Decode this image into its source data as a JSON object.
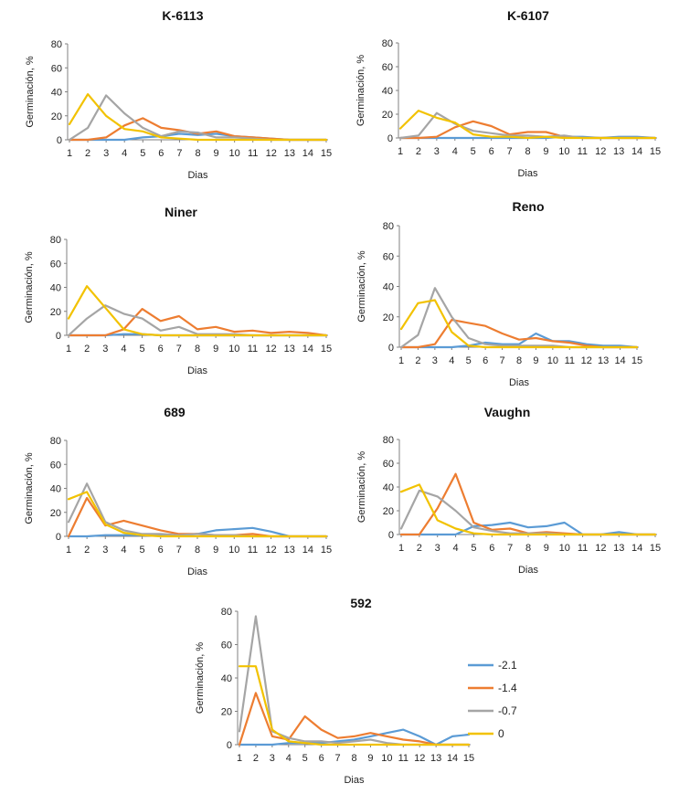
{
  "figure": {
    "xlabel": "Dias",
    "ylabel": "Germinación, %"
  },
  "colors": {
    "-2.1": "#5b9bd5",
    "-1.4": "#ed7d31",
    "-0.7": "#a5a5a5",
    "0": "#f2c200",
    "axis": "#808080",
    "text": "#222222"
  },
  "legend": {
    "position": "right of chart 592",
    "entries": [
      {
        "label": "-2.1",
        "color_key": "-2.1"
      },
      {
        "label": "-1.4",
        "color_key": "-1.4"
      },
      {
        "label": "-0.7",
        "color_key": "-0.7"
      },
      {
        "label": "0",
        "color_key": "0"
      }
    ]
  },
  "chart_data": [
    {
      "type": "line",
      "title": "K-6113",
      "xlabel": "Dias",
      "ylabel": "Germinación, %",
      "x": [
        1,
        2,
        3,
        4,
        5,
        6,
        7,
        8,
        9,
        10,
        11,
        12,
        13,
        14,
        15
      ],
      "ylim": [
        0,
        80
      ],
      "yticks": [
        0,
        20,
        40,
        60,
        80
      ],
      "series": [
        {
          "name": "-2.1",
          "values": [
            0,
            0,
            0,
            0,
            2,
            3,
            5,
            4,
            5,
            3,
            2,
            1,
            0,
            0,
            0
          ]
        },
        {
          "name": "-1.4",
          "values": [
            0,
            0,
            2,
            12,
            18,
            10,
            8,
            5,
            7,
            3,
            2,
            1,
            0,
            0,
            0
          ]
        },
        {
          "name": "-0.7",
          "values": [
            0,
            10,
            37,
            22,
            10,
            3,
            7,
            6,
            2,
            2,
            1,
            0,
            0,
            0,
            0
          ]
        },
        {
          "name": "0",
          "values": [
            13,
            38,
            20,
            9,
            7,
            2,
            1,
            0,
            0,
            0,
            0,
            0,
            0,
            0,
            0
          ]
        }
      ]
    },
    {
      "type": "line",
      "title": "K-6107",
      "xlabel": "Dias",
      "ylabel": "Germinación, %",
      "x": [
        1,
        2,
        3,
        4,
        5,
        6,
        7,
        8,
        9,
        10,
        11,
        12,
        13,
        14,
        15
      ],
      "ylim": [
        0,
        80
      ],
      "yticks": [
        0,
        20,
        40,
        60,
        80
      ],
      "series": [
        {
          "name": "-2.1",
          "values": [
            0,
            0,
            0,
            0,
            0,
            0,
            0,
            0,
            0,
            1,
            1,
            0,
            1,
            1,
            0
          ]
        },
        {
          "name": "-1.4",
          "values": [
            0,
            0,
            1,
            9,
            14,
            10,
            3,
            5,
            5,
            1,
            0,
            0,
            0,
            0,
            0
          ]
        },
        {
          "name": "-0.7",
          "values": [
            0,
            2,
            21,
            12,
            6,
            4,
            2,
            2,
            1,
            2,
            0,
            0,
            0,
            0,
            0
          ]
        },
        {
          "name": "0",
          "values": [
            8,
            23,
            17,
            13,
            3,
            1,
            1,
            0,
            1,
            0,
            0,
            0,
            0,
            0,
            0
          ]
        }
      ]
    },
    {
      "type": "line",
      "title": "Niner",
      "xlabel": "Dias",
      "ylabel": "Germinación, %",
      "x": [
        1,
        2,
        3,
        4,
        5,
        6,
        7,
        8,
        9,
        10,
        11,
        12,
        13,
        14,
        15
      ],
      "ylim": [
        0,
        80
      ],
      "yticks": [
        0,
        20,
        40,
        60,
        80
      ],
      "series": [
        {
          "name": "-2.1",
          "values": [
            0,
            0,
            0,
            1,
            1,
            0,
            0,
            0,
            0,
            0,
            0,
            0,
            0,
            0,
            0
          ]
        },
        {
          "name": "-1.4",
          "values": [
            0,
            0,
            0,
            5,
            22,
            12,
            16,
            5,
            7,
            3,
            4,
            2,
            3,
            2,
            0
          ]
        },
        {
          "name": "-0.7",
          "values": [
            0,
            14,
            25,
            18,
            14,
            4,
            7,
            1,
            1,
            1,
            0,
            0,
            0,
            0,
            0
          ]
        },
        {
          "name": "0",
          "values": [
            14,
            41,
            23,
            5,
            1,
            0,
            0,
            0,
            0,
            0,
            0,
            0,
            0,
            0,
            0
          ]
        }
      ]
    },
    {
      "type": "line",
      "title": "Reno",
      "xlabel": "Dias",
      "ylabel": "Germinación, %",
      "x": [
        1,
        2,
        3,
        4,
        5,
        6,
        7,
        8,
        9,
        10,
        11,
        12,
        13,
        14,
        15
      ],
      "ylim": [
        0,
        80
      ],
      "yticks": [
        0,
        20,
        40,
        60,
        80
      ],
      "series": [
        {
          "name": "-2.1",
          "values": [
            0,
            0,
            0,
            0,
            1,
            3,
            2,
            2,
            9,
            4,
            4,
            2,
            1,
            1,
            0
          ]
        },
        {
          "name": "-1.4",
          "values": [
            0,
            0,
            2,
            18,
            16,
            14,
            9,
            5,
            6,
            4,
            3,
            1,
            0,
            0,
            0
          ]
        },
        {
          "name": "-0.7",
          "values": [
            0,
            8,
            39,
            20,
            6,
            2,
            1,
            1,
            1,
            1,
            0,
            0,
            0,
            0,
            0
          ]
        },
        {
          "name": "0",
          "values": [
            12,
            29,
            31,
            10,
            1,
            0,
            0,
            0,
            0,
            0,
            0,
            0,
            0,
            0,
            0
          ]
        }
      ]
    },
    {
      "type": "line",
      "title": "689",
      "xlabel": "Dias",
      "ylabel": "Germinación, %",
      "x": [
        1,
        2,
        3,
        4,
        5,
        6,
        7,
        8,
        9,
        10,
        11,
        12,
        13,
        14,
        15
      ],
      "ylim": [
        0,
        80
      ],
      "yticks": [
        0,
        20,
        40,
        60,
        80
      ],
      "series": [
        {
          "name": "-2.1",
          "values": [
            0,
            0,
            1,
            1,
            1,
            1,
            1,
            2,
            5,
            6,
            7,
            4,
            0,
            0,
            0
          ]
        },
        {
          "name": "-1.4",
          "values": [
            0,
            32,
            9,
            13,
            9,
            5,
            2,
            2,
            1,
            1,
            2,
            0,
            0,
            0,
            0
          ]
        },
        {
          "name": "-0.7",
          "values": [
            12,
            44,
            12,
            5,
            2,
            2,
            1,
            2,
            1,
            1,
            0,
            0,
            0,
            0,
            0
          ]
        },
        {
          "name": "0",
          "values": [
            31,
            37,
            10,
            3,
            1,
            0,
            0,
            0,
            0,
            0,
            0,
            0,
            0,
            0,
            0
          ]
        }
      ]
    },
    {
      "type": "line",
      "title": "Vaughn",
      "xlabel": "Dias",
      "ylabel": "Germinación, %",
      "x": [
        1,
        2,
        3,
        4,
        5,
        6,
        7,
        8,
        9,
        10,
        11,
        12,
        13,
        14,
        15
      ],
      "ylim": [
        0,
        80
      ],
      "yticks": [
        0,
        20,
        40,
        60,
        80
      ],
      "series": [
        {
          "name": "-2.1",
          "values": [
            0,
            0,
            0,
            0,
            7,
            8,
            10,
            6,
            7,
            10,
            0,
            0,
            2,
            0,
            0
          ]
        },
        {
          "name": "-1.4",
          "values": [
            0,
            0,
            22,
            51,
            10,
            4,
            5,
            1,
            2,
            1,
            0,
            0,
            0,
            0,
            0
          ]
        },
        {
          "name": "-0.7",
          "values": [
            5,
            37,
            32,
            20,
            6,
            3,
            1,
            1,
            1,
            0,
            0,
            0,
            0,
            0,
            0
          ]
        },
        {
          "name": "0",
          "values": [
            36,
            42,
            12,
            5,
            1,
            0,
            0,
            0,
            0,
            0,
            0,
            0,
            0,
            0,
            0
          ]
        }
      ]
    },
    {
      "type": "line",
      "title": "592",
      "xlabel": "Dias",
      "ylabel": "Germinación, %",
      "x": [
        1,
        2,
        3,
        4,
        5,
        6,
        7,
        8,
        9,
        10,
        11,
        12,
        13,
        14,
        15
      ],
      "ylim": [
        0,
        80
      ],
      "yticks": [
        0,
        20,
        40,
        60,
        80
      ],
      "series": [
        {
          "name": "-2.1",
          "values": [
            0,
            0,
            0,
            1,
            1,
            1,
            2,
            3,
            5,
            7,
            9,
            5,
            0,
            5,
            6
          ]
        },
        {
          "name": "-1.4",
          "values": [
            0,
            31,
            5,
            3,
            17,
            9,
            4,
            5,
            7,
            5,
            3,
            2,
            0,
            0,
            0
          ]
        },
        {
          "name": "-0.7",
          "values": [
            8,
            77,
            8,
            4,
            2,
            2,
            1,
            2,
            3,
            1,
            0,
            0,
            0,
            0,
            0
          ]
        },
        {
          "name": "0",
          "values": [
            47,
            47,
            9,
            2,
            1,
            0,
            0,
            0,
            0,
            0,
            0,
            0,
            0,
            0,
            0
          ]
        }
      ]
    }
  ]
}
